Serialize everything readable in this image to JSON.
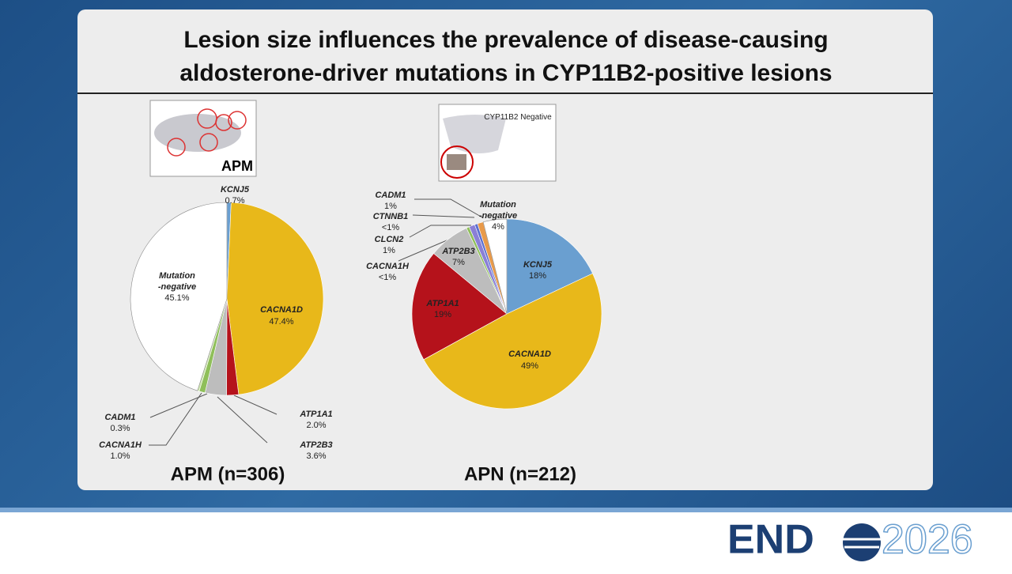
{
  "header": {
    "title": "Lesion size influences the prevalence of disease-causing aldosterone-driver mutations in CYP11B2-positive lesions"
  },
  "images": {
    "apm_label": "APM",
    "apn_label": "CYP11B2 Negative"
  },
  "footer": {
    "brand": "END",
    "year": "2026"
  },
  "chart_data": [
    {
      "type": "pie",
      "title": "APM (n=306)",
      "categories": [
        "KCNJ5",
        "CACNA1D",
        "ATP1A1",
        "ATP2B3",
        "CACNA1H",
        "CADM1",
        "Mutation -negative"
      ],
      "values": [
        0.7,
        47.4,
        2.0,
        3.6,
        1.0,
        0.3,
        45.1
      ],
      "value_labels": [
        "0.7%",
        "47.4%",
        "2.0%",
        "3.6%",
        "1.0%",
        "0.3%",
        "45.1%"
      ],
      "colors": [
        "#6a9fd0",
        "#e8b81a",
        "#b5121b",
        "#bdbdbd",
        "#8fbf5a",
        "#c8e3a6",
        "#ffffff"
      ]
    },
    {
      "type": "pie",
      "title": "APN (n=212)",
      "categories": [
        "KCNJ5",
        "CACNA1D",
        "ATP1A1",
        "ATP2B3",
        "CACNA1H",
        "CLCN2",
        "CTNNB1",
        "CADM1",
        "Mutation -negative"
      ],
      "values": [
        18,
        49,
        19,
        7,
        0.5,
        1,
        0.5,
        1,
        4
      ],
      "value_labels": [
        "18%",
        "49%",
        "19%",
        "7%",
        "<1%",
        "1%",
        "<1%",
        "1%",
        "4%"
      ],
      "colors": [
        "#6a9fd0",
        "#e8b81a",
        "#b5121b",
        "#bdbdbd",
        "#8fbf5a",
        "#8a7fd6",
        "#5b6fd0",
        "#e89a4a",
        "#ffffff"
      ]
    }
  ]
}
